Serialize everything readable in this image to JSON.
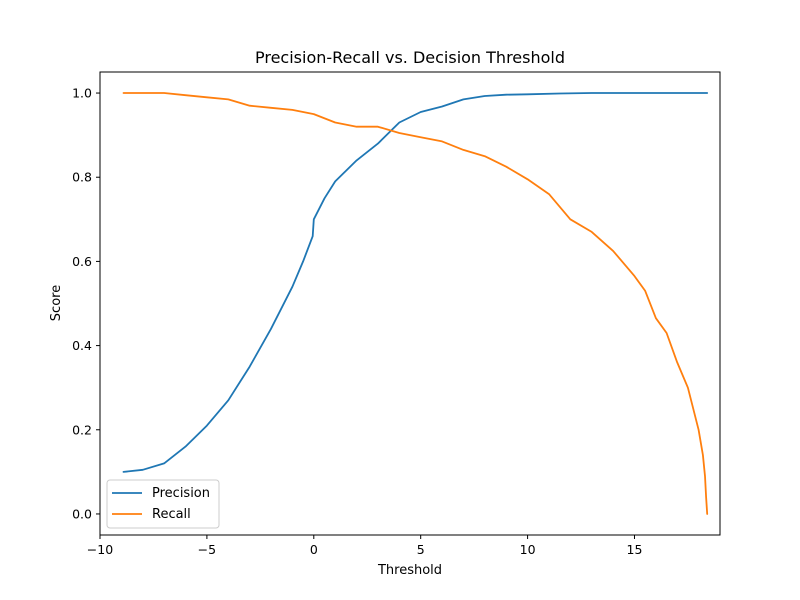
{
  "chart_data": {
    "type": "line",
    "title": "Precision-Recall vs. Decision Threshold",
    "xlabel": "Threshold",
    "ylabel": "Score",
    "xlim": [
      -10,
      19
    ],
    "ylim": [
      -0.05,
      1.05
    ],
    "xticks": [
      -10,
      -5,
      0,
      5,
      10,
      15
    ],
    "xtick_labels": [
      "−10",
      "−5",
      "0",
      "5",
      "10",
      "15"
    ],
    "yticks": [
      0.0,
      0.2,
      0.4,
      0.6,
      0.8,
      1.0
    ],
    "ytick_labels": [
      "0.0",
      "0.2",
      "0.4",
      "0.6",
      "0.8",
      "1.0"
    ],
    "grid": false,
    "legend_position": "lower-left",
    "series": [
      {
        "name": "Precision",
        "color": "#1f77b4",
        "x": [
          -8.9,
          -8.0,
          -7.0,
          -6.0,
          -5.0,
          -4.0,
          -3.0,
          -2.0,
          -1.0,
          -0.5,
          -0.05,
          0.0,
          0.5,
          1.0,
          2.0,
          3.0,
          4.0,
          5.0,
          6.0,
          7.0,
          8.0,
          9.0,
          10.0,
          11.5,
          13.0,
          15.0,
          17.0,
          18.4
        ],
        "y": [
          0.1,
          0.105,
          0.12,
          0.16,
          0.21,
          0.27,
          0.35,
          0.44,
          0.54,
          0.6,
          0.66,
          0.7,
          0.75,
          0.79,
          0.84,
          0.88,
          0.93,
          0.955,
          0.968,
          0.985,
          0.993,
          0.996,
          0.997,
          0.999,
          1.0,
          1.0,
          1.0,
          1.0
        ]
      },
      {
        "name": "Recall",
        "color": "#ff7f0e",
        "x": [
          -8.9,
          -7.0,
          -6.0,
          -5.0,
          -4.0,
          -3.0,
          -2.0,
          -1.0,
          0.0,
          1.0,
          2.0,
          3.0,
          4.0,
          5.0,
          6.0,
          7.0,
          8.0,
          9.0,
          10.0,
          11.0,
          12.0,
          13.0,
          14.0,
          15.0,
          15.5,
          16.0,
          16.5,
          17.0,
          17.5,
          18.0,
          18.2,
          18.3,
          18.35,
          18.4
        ],
        "y": [
          1.0,
          1.0,
          0.995,
          0.99,
          0.985,
          0.97,
          0.965,
          0.96,
          0.95,
          0.93,
          0.92,
          0.92,
          0.905,
          0.895,
          0.885,
          0.865,
          0.85,
          0.825,
          0.795,
          0.76,
          0.7,
          0.67,
          0.625,
          0.565,
          0.53,
          0.465,
          0.43,
          0.36,
          0.3,
          0.2,
          0.14,
          0.09,
          0.04,
          0.0
        ]
      }
    ]
  }
}
